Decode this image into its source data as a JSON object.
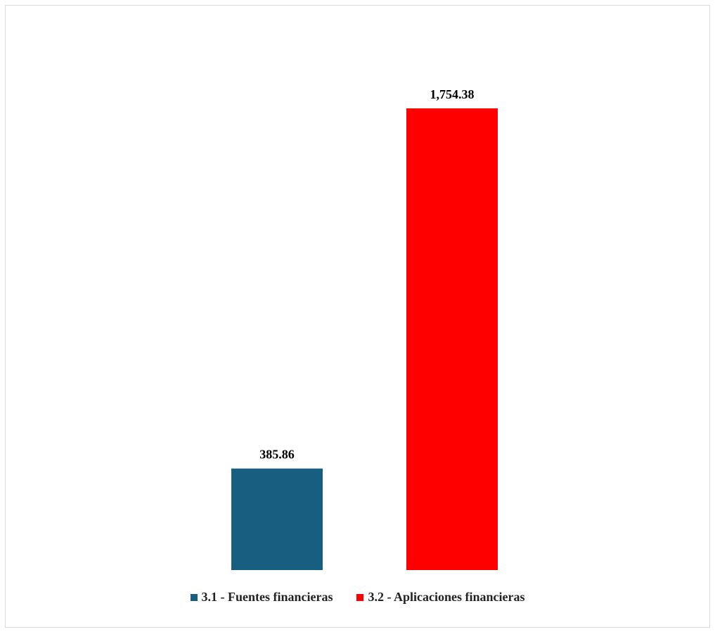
{
  "chart_data": {
    "type": "bar",
    "categories": [
      "3.1 - Fuentes financieras",
      "3.2 - Aplicaciones financieras"
    ],
    "values": [
      385.86,
      1754.38
    ],
    "value_labels": [
      "385.86",
      "1,754.38"
    ],
    "colors": [
      "#175e80",
      "#ff0000"
    ],
    "title": "",
    "xlabel": "",
    "ylabel": "",
    "ylim": [
      0,
      2000
    ],
    "grid": false,
    "legend_position": "bottom",
    "legend": [
      {
        "name": "3.1 - Fuentes financieras",
        "color": "#175e80"
      },
      {
        "name": "3.2 - Aplicaciones financieras",
        "color": "#ff0000"
      }
    ]
  }
}
